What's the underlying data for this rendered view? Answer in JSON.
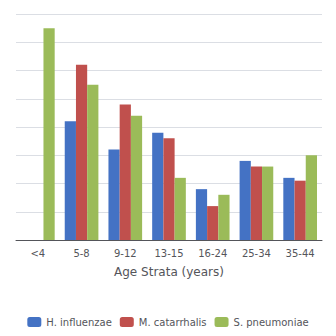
{
  "chart_data": {
    "type": "bar",
    "xlabel": "Age Strata (years)",
    "categories": [
      "<4",
      "5-8",
      "9-12",
      "13-15",
      "16-24",
      "25-34",
      "35-44"
    ],
    "series": [
      {
        "name": "H. influenzae",
        "color": "#4472C4",
        "values": [
          0,
          42,
          32,
          38,
          18,
          28,
          22
        ]
      },
      {
        "name": "M. catarrhalis",
        "color": "#C0504D",
        "values": [
          0,
          62,
          48,
          36,
          12,
          26,
          21
        ]
      },
      {
        "name": "S. pneumoniae",
        "color": "#9BBB59",
        "values": [
          75,
          55,
          44,
          22,
          16,
          26,
          30
        ]
      }
    ],
    "ylim": [
      0,
      80
    ],
    "yticks": [
      0,
      10,
      20,
      30,
      40,
      50,
      60,
      70,
      80
    ],
    "grid": true,
    "legend": "bottom",
    "tick_labels": "x"
  }
}
